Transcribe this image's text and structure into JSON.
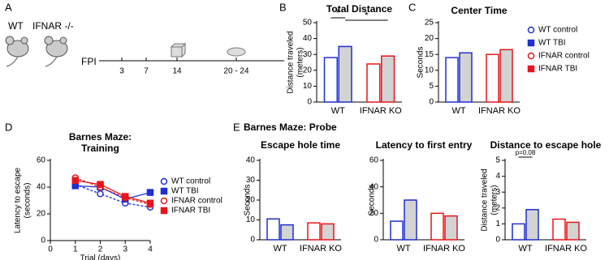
{
  "panel_labels": [
    "A",
    "B",
    "C",
    "D",
    "E"
  ],
  "panel_a": {
    "strains": [
      "WT",
      "IFNAR -/-"
    ],
    "event": "FPI",
    "timeline": [
      "3",
      "7",
      "14",
      "20 - 24"
    ]
  },
  "panel_e_title": "Barnes Maze: Probe",
  "chart_data": [
    {
      "type": "bar",
      "title": [
        "Total Distance"
      ],
      "ylabel": [
        "Distance traveled",
        "(meters)"
      ],
      "categories": [
        "WT",
        "IFNAR KO"
      ],
      "ylim": [
        0,
        50
      ],
      "yticks": [
        0,
        10,
        20,
        30,
        40,
        50
      ],
      "annotations": [
        "*",
        "*"
      ],
      "series": [
        {
          "color": "#1f2fd1",
          "fill": "#ffffff",
          "values": [
            28,
            null
          ]
        },
        {
          "color": "#1f2fd1",
          "fill": "#d3d3d3",
          "values": [
            35,
            null
          ]
        },
        {
          "color": "#e8141b",
          "fill": "#ffffff",
          "values": [
            null,
            24
          ]
        },
        {
          "color": "#e8141b",
          "fill": "#d3d3d3",
          "values": [
            null,
            29
          ]
        }
      ]
    },
    {
      "type": "bar",
      "title": [
        "Center Time"
      ],
      "ylabel": [
        "Seconds"
      ],
      "categories": [
        "WT",
        "IFNAR KO"
      ],
      "ylim": [
        0,
        25
      ],
      "yticks": [
        0,
        5,
        10,
        15,
        20,
        25
      ],
      "legend": "right",
      "series": [
        {
          "name": "WT control",
          "marker": "circle-open",
          "color": "#1f2fd1",
          "fill": "#ffffff",
          "values": [
            14,
            null
          ]
        },
        {
          "name": "WT TBI",
          "marker": "square",
          "color": "#1f2fd1",
          "fill": "#d3d3d3",
          "values": [
            15.5,
            null
          ]
        },
        {
          "name": "IFNAR control",
          "marker": "circle-open",
          "color": "#e8141b",
          "fill": "#ffffff",
          "values": [
            null,
            15
          ]
        },
        {
          "name": "IFNAR TBI",
          "marker": "square",
          "color": "#e8141b",
          "fill": "#d3d3d3",
          "values": [
            null,
            16.5
          ]
        }
      ]
    },
    {
      "type": "line",
      "title": [
        "Barnes Maze:",
        "Training"
      ],
      "ylabel": [
        "Latency to escape",
        "(seconds)"
      ],
      "xlabel": "Trial (days)",
      "x": [
        1,
        2,
        3,
        4
      ],
      "xlim": [
        0,
        4
      ],
      "xticks": [
        0,
        1,
        2,
        3,
        4
      ],
      "ylim": [
        0,
        60
      ],
      "yticks": [
        0,
        20,
        40,
        60
      ],
      "legend": "right",
      "series": [
        {
          "name": "WT control",
          "marker": "circle-open",
          "dash": true,
          "color": "#1f2fd1",
          "values": [
            42,
            35,
            28,
            25
          ]
        },
        {
          "name": "WT TBI",
          "marker": "square",
          "dash": false,
          "color": "#1f2fd1",
          "values": [
            41,
            40,
            31,
            36
          ]
        },
        {
          "name": "IFNAR control",
          "marker": "circle-open",
          "dash": true,
          "color": "#e8141b",
          "values": [
            47,
            40,
            32,
            27
          ]
        },
        {
          "name": "IFNAR TBI",
          "marker": "square",
          "dash": false,
          "color": "#e8141b",
          "values": [
            45,
            42,
            33,
            28
          ]
        }
      ]
    },
    {
      "type": "bar",
      "title": [
        "Escape hole time"
      ],
      "ylabel": [
        "Seconds"
      ],
      "categories": [
        "WT",
        "IFNAR KO"
      ],
      "ylim": [
        0,
        40
      ],
      "yticks": [
        0,
        10,
        20,
        30,
        40
      ],
      "series": [
        {
          "color": "#1f2fd1",
          "fill": "#ffffff",
          "values": [
            10.5,
            null
          ]
        },
        {
          "color": "#1f2fd1",
          "fill": "#d3d3d3",
          "values": [
            7.5,
            null
          ]
        },
        {
          "color": "#e8141b",
          "fill": "#ffffff",
          "values": [
            null,
            8.5
          ]
        },
        {
          "color": "#e8141b",
          "fill": "#d3d3d3",
          "values": [
            null,
            8
          ]
        }
      ]
    },
    {
      "type": "bar",
      "title": [
        "Latency to first entry"
      ],
      "ylabel": [
        "Seconds"
      ],
      "categories": [
        "WT",
        "IFNAR KO"
      ],
      "ylim": [
        0,
        60
      ],
      "yticks": [
        0,
        20,
        40,
        60
      ],
      "series": [
        {
          "color": "#1f2fd1",
          "fill": "#ffffff",
          "values": [
            14,
            null
          ]
        },
        {
          "color": "#1f2fd1",
          "fill": "#d3d3d3",
          "values": [
            30,
            null
          ]
        },
        {
          "color": "#e8141b",
          "fill": "#ffffff",
          "values": [
            null,
            20
          ]
        },
        {
          "color": "#e8141b",
          "fill": "#d3d3d3",
          "values": [
            null,
            18
          ]
        }
      ]
    },
    {
      "type": "bar",
      "title": [
        "Distance to escape hole"
      ],
      "ylabel": [
        "Distance traveled",
        "(meters)"
      ],
      "categories": [
        "WT",
        "IFNAR KO"
      ],
      "ylim": [
        0,
        5
      ],
      "yticks": [
        0,
        1,
        2,
        3,
        4,
        5
      ],
      "annotations": [
        "p=0.08"
      ],
      "series": [
        {
          "color": "#1f2fd1",
          "fill": "#ffffff",
          "values": [
            1.0,
            null
          ]
        },
        {
          "color": "#1f2fd1",
          "fill": "#d3d3d3",
          "values": [
            1.9,
            null
          ]
        },
        {
          "color": "#e8141b",
          "fill": "#ffffff",
          "values": [
            null,
            1.3
          ]
        },
        {
          "color": "#e8141b",
          "fill": "#d3d3d3",
          "values": [
            null,
            1.1
          ]
        }
      ]
    }
  ]
}
